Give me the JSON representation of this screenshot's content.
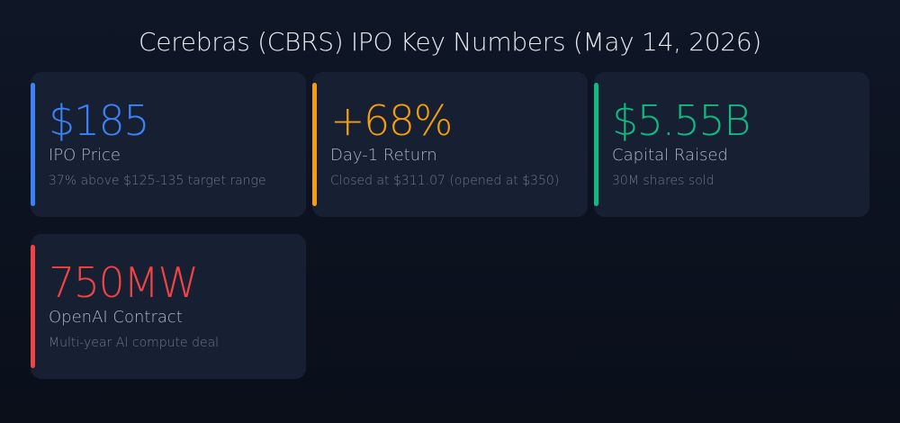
{
  "title": "Cerebras (CBRS) IPO Key Numbers (May 14, 2026)",
  "cards": [
    {
      "value": "$185",
      "label": "IPO Price",
      "sub": "37% above $125-135 target range",
      "color": "#3b82f6"
    },
    {
      "value": "+68%",
      "label": "Day-1 Return",
      "sub": "Closed at $311.07 (opened at $350)",
      "color": "#f59e0b"
    },
    {
      "value": "$5.55B",
      "label": "Capital Raised",
      "sub": "30M shares sold",
      "color": "#10b981"
    },
    {
      "value": "750MW",
      "label": "OpenAI Contract",
      "sub": "Multi-year AI compute deal",
      "color": "#ef4444"
    }
  ]
}
